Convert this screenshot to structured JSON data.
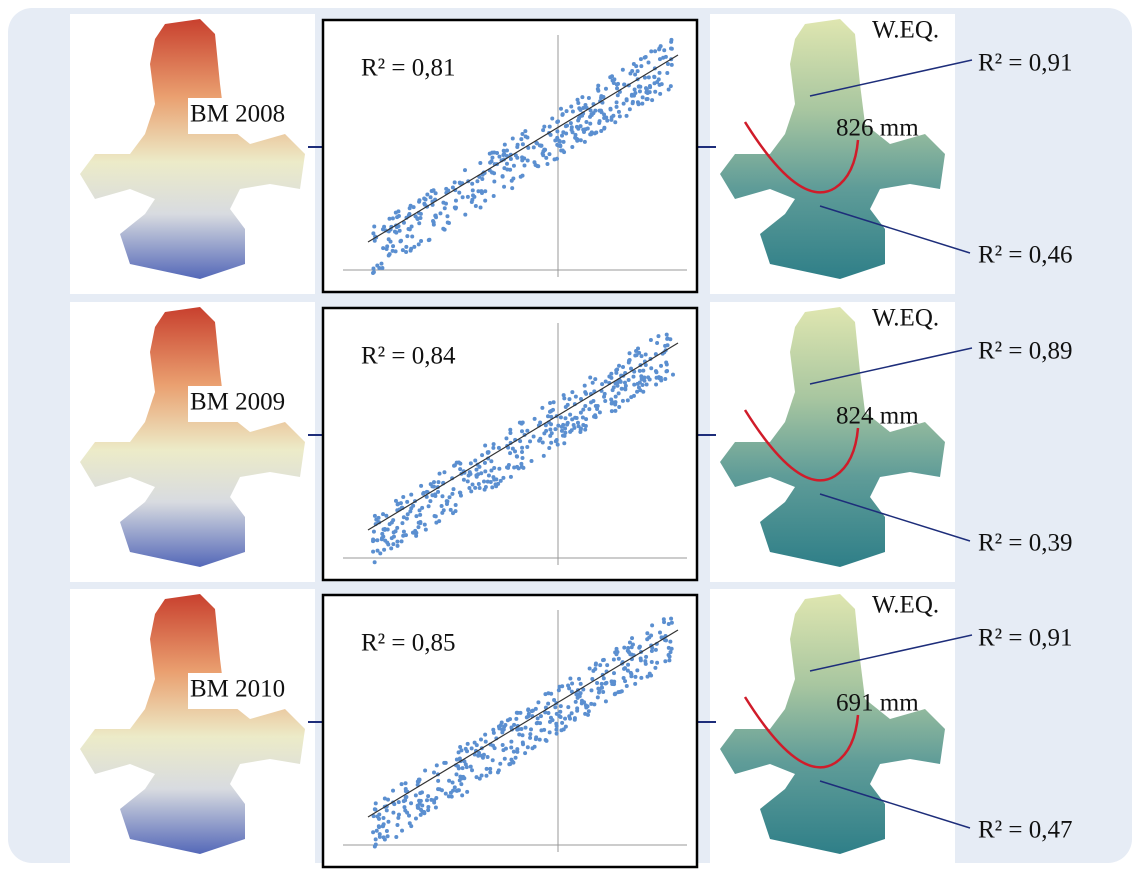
{
  "rows": [
    {
      "label": "BM 2008",
      "r2": "R² = 0,81",
      "weq": "W.EQ.",
      "top_r2": "R² = 0,91",
      "mm": "826 mm",
      "bottom_r2": "R² = 0,46"
    },
    {
      "label": "BM 2009",
      "r2": "R² = 0,84",
      "weq": "W.EQ.",
      "top_r2": "R² = 0,89",
      "mm": "824 mm",
      "bottom_r2": "R² = 0,39"
    },
    {
      "label": "BM 2010",
      "r2": "R² = 0,85",
      "weq": "W.EQ.",
      "top_r2": "R² = 0,91",
      "mm": "691 mm",
      "bottom_r2": "R² = 0,47"
    }
  ]
}
